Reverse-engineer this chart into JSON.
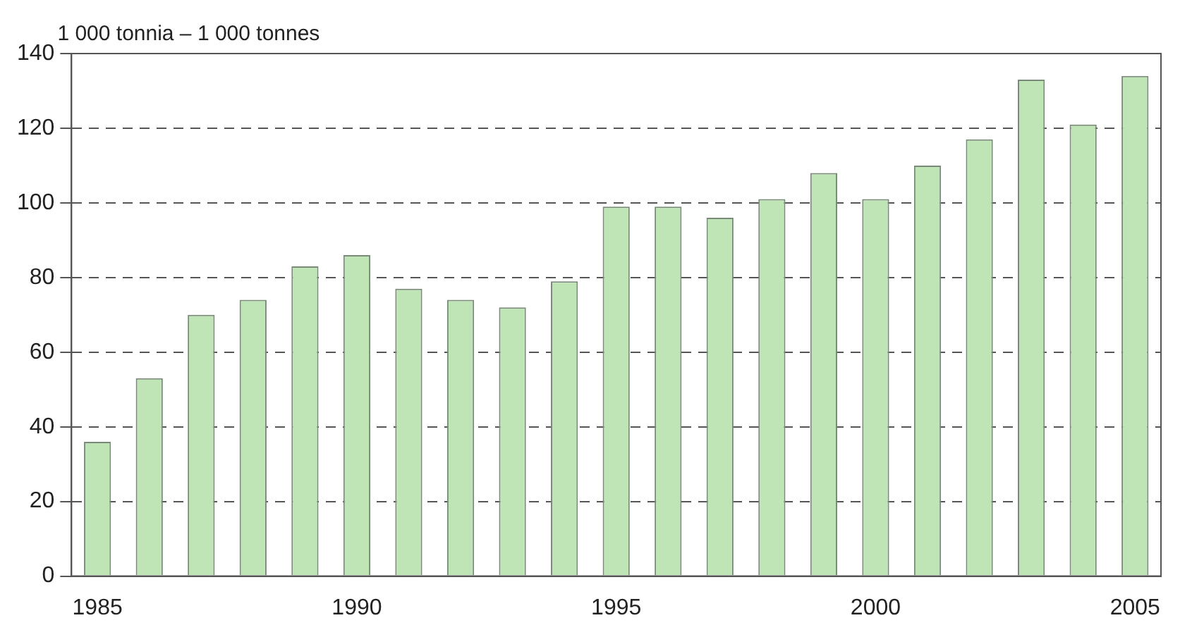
{
  "chart_data": {
    "type": "bar",
    "ylabel": "1 000 tonnia – 1 000 tonnes",
    "categories": [
      "1985",
      null,
      null,
      null,
      null,
      "1990",
      null,
      null,
      null,
      null,
      "1995",
      null,
      null,
      null,
      null,
      "2000",
      null,
      null,
      null,
      null,
      "2005"
    ],
    "values": [
      36,
      53,
      70,
      74,
      83,
      86,
      77,
      74,
      72,
      79,
      99,
      99,
      96,
      101,
      108,
      101,
      110,
      117,
      133,
      121,
      134
    ],
    "color": "#bfe4b6",
    "ylim": [
      0,
      140
    ],
    "yticks": [
      0,
      20,
      40,
      60,
      80,
      100,
      120,
      140
    ],
    "grid": "y",
    "legend": false
  }
}
